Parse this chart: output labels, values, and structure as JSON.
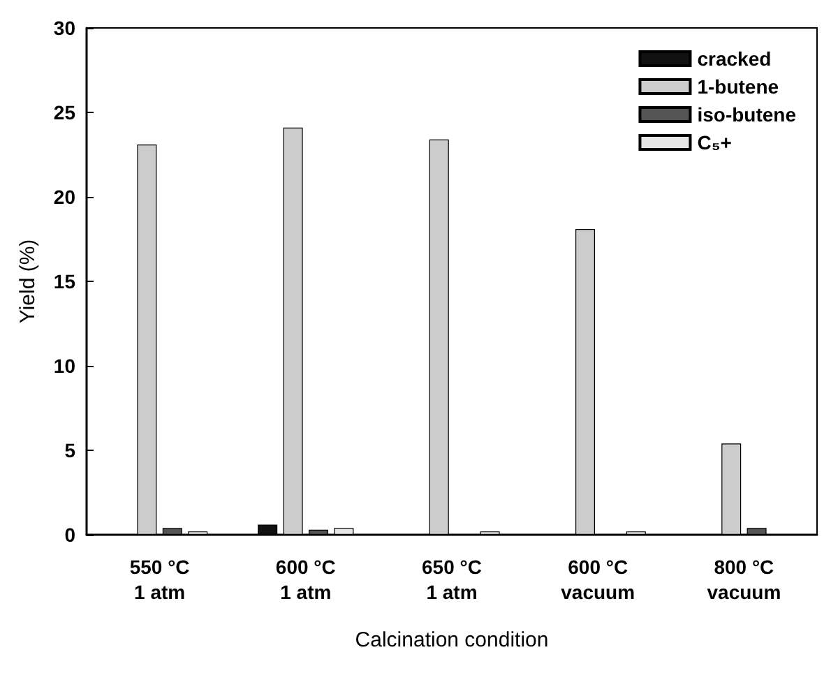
{
  "chart_data": {
    "type": "bar",
    "xlabel": "Calcination condition",
    "ylabel": "Yield (%)",
    "categories": [
      "550 °C\n1 atm",
      "600 °C\n1 atm",
      "650 °C\n1 atm",
      "600 °C\nvacuum",
      "800 °C\nvacuum"
    ],
    "series": [
      {
        "name": "cracked",
        "color": "#111111",
        "values": [
          null,
          0.6,
          null,
          null,
          null
        ]
      },
      {
        "name": "1-butene",
        "color": "#cccccc",
        "values": [
          23.1,
          24.1,
          23.4,
          18.1,
          5.4
        ]
      },
      {
        "name": "iso-butene",
        "color": "#555555",
        "values": [
          0.4,
          0.3,
          null,
          null,
          0.4
        ]
      },
      {
        "name": "C₅+",
        "color": "#e6e6e6",
        "values": [
          0.2,
          0.4,
          0.2,
          0.2,
          null
        ]
      }
    ],
    "ylim": [
      0,
      30
    ],
    "yticks": [
      0,
      5,
      10,
      15,
      20,
      25,
      30
    ],
    "grid": false,
    "legend": "top right"
  }
}
